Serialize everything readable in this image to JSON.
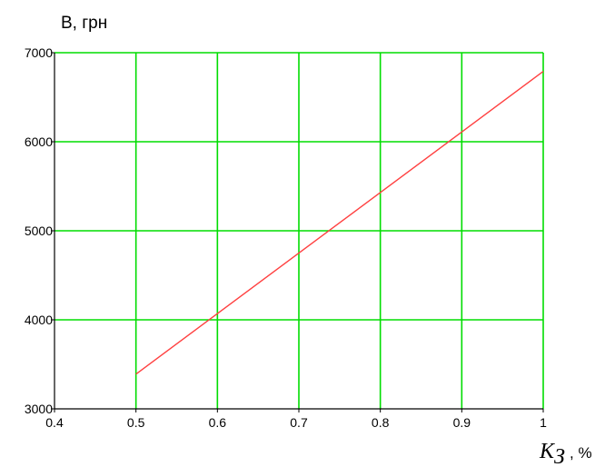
{
  "chart_data": {
    "type": "line",
    "ylabel": "В, грн",
    "xlabel_symbol": "K",
    "xlabel_subscript": "З",
    "xlabel_unit": ", %",
    "xlim": [
      0.4,
      1.0
    ],
    "ylim": [
      3000,
      7000
    ],
    "x_ticks": [
      "0.4",
      "0.5",
      "0.6",
      "0.7",
      "0.8",
      "0.9",
      "1"
    ],
    "y_ticks": [
      "3000",
      "4000",
      "5000",
      "6000",
      "7000"
    ],
    "grid": true,
    "grid_color": "#00dd00",
    "series": [
      {
        "color": "#ff4040",
        "x": [
          0.5,
          1.0
        ],
        "y": [
          3390,
          6790
        ]
      }
    ]
  }
}
